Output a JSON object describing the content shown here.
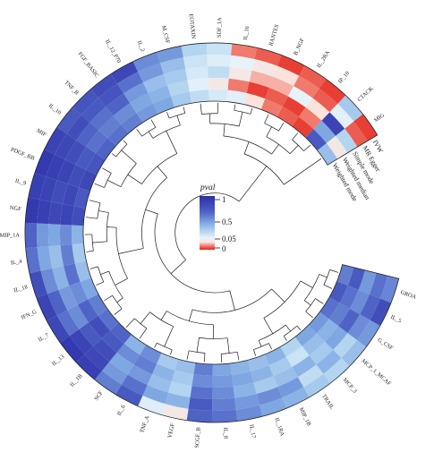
{
  "chart_data": {
    "type": "heatmap",
    "layout": "circular",
    "legend": {
      "title": "pval",
      "ticks": [
        "1",
        "0.5",
        "0.05",
        "0"
      ],
      "colors": {
        "high": "#2c2fa8",
        "mid": "#6f9ae0",
        "low": "#e8f4fb",
        "zero": "#e32118"
      }
    },
    "methods": [
      "IVW",
      "MR Egger",
      "Simple mode",
      "Weighted median",
      "Weighted mode"
    ],
    "cytokines": [
      "GROA",
      "IL_5",
      "G_CSF",
      "MCP_1_MCAF",
      "MCP_3",
      "TRAIL",
      "MIP_1B",
      "IL_1RA",
      "IL_17",
      "IL_8",
      "SCGF_B",
      "VEGF",
      "TNF_A",
      "IL_6",
      "SCF",
      "IL_1B",
      "IL_13",
      "IL_7",
      "IFN_G",
      "IL_18",
      "IL_4",
      "MIP_1A",
      "NGF",
      "IL_9",
      "PDGF_BB",
      "MIF",
      "IL_10",
      "TNF_B",
      "FGF_BASIC",
      "IL_12_P70",
      "IL_2",
      "M_CSF",
      "EOTAXIN",
      "SDF_1A",
      "IL_16",
      "RANTES",
      "B_NGF",
      "IL_2RA",
      "IP_10",
      "CTACK",
      "MIG"
    ],
    "pvalues": [
      [
        0.62,
        0.85,
        0.55,
        0.4,
        0.3,
        0.35,
        0.45,
        0.5,
        0.6,
        0.7,
        0.75,
        0.06,
        0.12,
        0.8,
        0.65,
        0.92,
        0.95,
        0.88,
        0.9,
        0.85,
        0.7,
        0.75,
        0.95,
        0.92,
        0.95,
        0.9,
        0.8,
        0.82,
        0.85,
        0.88,
        0.6,
        0.55,
        0.3,
        0.2,
        0.03,
        0.02,
        0.01,
        0.02,
        0.01,
        0.35,
        0.01
      ],
      [
        0.7,
        0.75,
        0.6,
        0.3,
        0.45,
        0.25,
        0.55,
        0.6,
        0.55,
        0.65,
        0.8,
        0.45,
        0.5,
        0.7,
        0.55,
        0.88,
        0.9,
        0.7,
        0.75,
        0.6,
        0.5,
        0.55,
        0.92,
        0.9,
        0.92,
        0.88,
        0.85,
        0.8,
        0.82,
        0.7,
        0.55,
        0.4,
        0.2,
        0.12,
        0.08,
        0.06,
        0.05,
        0.03,
        0.02,
        0.1,
        0.02
      ],
      [
        0.55,
        0.6,
        0.75,
        0.5,
        0.35,
        0.45,
        0.4,
        0.35,
        0.45,
        0.6,
        0.7,
        0.3,
        0.4,
        0.55,
        0.5,
        0.85,
        0.8,
        0.6,
        0.55,
        0.45,
        0.4,
        0.5,
        0.88,
        0.85,
        0.9,
        0.85,
        0.75,
        0.7,
        0.75,
        0.55,
        0.4,
        0.35,
        0.15,
        0.25,
        0.06,
        0.04,
        0.04,
        0.08,
        0.05,
        0.9,
        0.3
      ],
      [
        0.8,
        0.7,
        0.65,
        0.45,
        0.4,
        0.2,
        0.35,
        0.45,
        0.5,
        0.55,
        0.6,
        0.35,
        0.45,
        0.65,
        0.6,
        0.8,
        0.85,
        0.75,
        0.6,
        0.7,
        0.65,
        0.6,
        0.9,
        0.88,
        0.85,
        0.8,
        0.7,
        0.65,
        0.6,
        0.5,
        0.45,
        0.3,
        0.1,
        0.06,
        0.03,
        0.01,
        0.02,
        0.01,
        0.03,
        0.5,
        0.06
      ],
      [
        0.65,
        0.8,
        0.7,
        0.55,
        0.5,
        0.3,
        0.45,
        0.4,
        0.45,
        0.5,
        0.65,
        0.4,
        0.35,
        0.6,
        0.45,
        0.75,
        0.7,
        0.65,
        0.5,
        0.4,
        0.35,
        0.45,
        0.85,
        0.8,
        0.88,
        0.82,
        0.75,
        0.7,
        0.65,
        0.55,
        0.5,
        0.35,
        0.25,
        0.15,
        0.1,
        0.05,
        0.03,
        0.02,
        0.01,
        0.8,
        0.4
      ]
    ]
  }
}
